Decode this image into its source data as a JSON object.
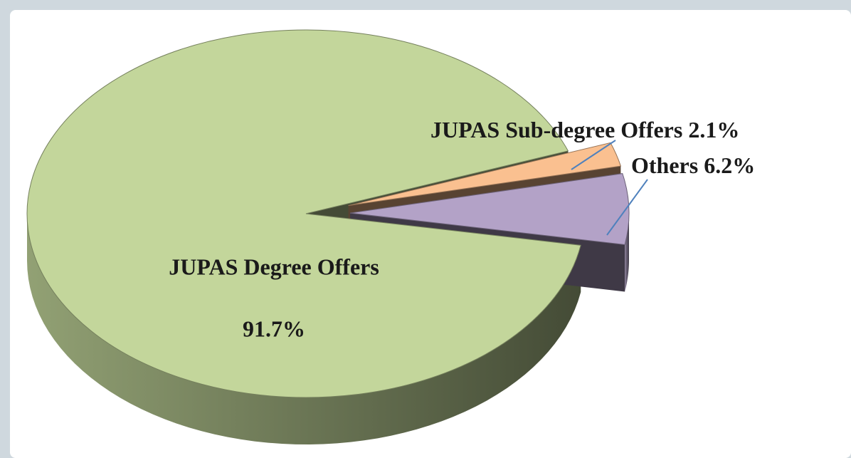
{
  "chart_data": {
    "type": "pie",
    "categories": [
      "JUPAS Degree Offers",
      "JUPAS Sub-degree Offers",
      "Others"
    ],
    "values": [
      91.7,
      2.1,
      6.2
    ],
    "value_labels": [
      "91.7%",
      "2.1%",
      "6.2%"
    ],
    "colors": [
      "#c3d69b",
      "#fac090",
      "#b3a2c7"
    ]
  }
}
